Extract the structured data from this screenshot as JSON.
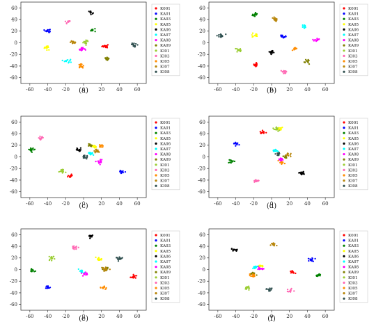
{
  "figure": {
    "legend_labels": [
      "K001",
      "KA01",
      "KA03",
      "KA05",
      "KA06",
      "KA07",
      "KA08",
      "KA09",
      "KI01",
      "KI03",
      "KI05",
      "KI07",
      "KI08"
    ],
    "class_colors": [
      "#ff0000",
      "#0000ff",
      "#008000",
      "#ffff00",
      "#000000",
      "#00ffff",
      "#ff00ff",
      "#808000",
      "#9acd32",
      "#ff69b4",
      "#ff8c00",
      "#b8860b",
      "#2f4f4f"
    ]
  },
  "chart_data": [
    {
      "type": "scatter",
      "caption": "(a)",
      "xlim": [
        -70,
        70
      ],
      "ylim": [
        -70,
        70
      ],
      "xticks": [
        -60,
        -40,
        -20,
        0,
        20,
        40,
        60
      ],
      "yticks": [
        60,
        40,
        20,
        0,
        -20,
        -40,
        -60
      ],
      "xlabel": "",
      "ylabel": "",
      "grid": false,
      "legend": "right",
      "series": [
        {
          "name": "K001",
          "center": [
            24,
            -6
          ]
        },
        {
          "name": "KA01",
          "center": [
            -40,
            21
          ]
        },
        {
          "name": "KA03",
          "center": [
            10,
            22
          ]
        },
        {
          "name": "KA05",
          "center": [
            -41,
            -8
          ]
        },
        {
          "name": "KA06",
          "center": [
            8,
            52
          ]
        },
        {
          "name": "KA07",
          "center": [
            -18,
            -31
          ]
        },
        {
          "name": "KA08",
          "center": [
            -2,
            -11
          ]
        },
        {
          "name": "KA09",
          "center": [
            26,
            -27
          ]
        },
        {
          "name": "KI01",
          "center": [
            2,
            1
          ]
        },
        {
          "name": "KI03",
          "center": [
            -17,
            36
          ]
        },
        {
          "name": "KI05",
          "center": [
            -3,
            -40
          ]
        },
        {
          "name": "KI07",
          "center": [
            -12,
            1
          ]
        },
        {
          "name": "KI08",
          "center": [
            57,
            -3
          ]
        }
      ]
    },
    {
      "type": "scatter",
      "caption": "(b)",
      "xlim": [
        -70,
        70
      ],
      "ylim": [
        -70,
        70
      ],
      "xticks": [
        -60,
        -40,
        -20,
        0,
        20,
        40,
        60
      ],
      "yticks": [
        60,
        40,
        20,
        0,
        -20,
        -40,
        -60
      ],
      "xlabel": "",
      "ylabel": "",
      "grid": false,
      "legend": "right",
      "series": [
        {
          "name": "K001",
          "center": [
            -18,
            -38
          ]
        },
        {
          "name": "KA01",
          "center": [
            13,
            11
          ]
        },
        {
          "name": "KA03",
          "center": [
            -18,
            49
          ]
        },
        {
          "name": "KA05",
          "center": [
            -18,
            13
          ]
        },
        {
          "name": "KA06",
          "center": [
            0,
            -16
          ]
        },
        {
          "name": "KA07",
          "center": [
            36,
            27
          ]
        },
        {
          "name": "KA08",
          "center": [
            50,
            5
          ]
        },
        {
          "name": "KA09",
          "center": [
            40,
            -31
          ]
        },
        {
          "name": "KI01",
          "center": [
            -36,
            -13
          ]
        },
        {
          "name": "KI03",
          "center": [
            14,
            -50
          ]
        },
        {
          "name": "KI05",
          "center": [
            26,
            -10
          ]
        },
        {
          "name": "KI07",
          "center": [
            4,
            41
          ]
        },
        {
          "name": "KI08",
          "center": [
            -56,
            12
          ]
        }
      ]
    },
    {
      "type": "scatter",
      "caption": "(c)",
      "xlim": [
        -70,
        70
      ],
      "ylim": [
        -70,
        70
      ],
      "xticks": [
        -60,
        -40,
        -20,
        0,
        20,
        40,
        60
      ],
      "yticks": [
        60,
        40,
        20,
        0,
        -20,
        -40,
        -60
      ],
      "xlabel": "",
      "ylabel": "",
      "grid": false,
      "legend": "right",
      "series": [
        {
          "name": "K001",
          "center": [
            -15,
            -33
          ]
        },
        {
          "name": "KA01",
          "center": [
            43,
            -25
          ]
        },
        {
          "name": "KA03",
          "center": [
            -58,
            12
          ]
        },
        {
          "name": "KA05",
          "center": [
            12,
            18
          ]
        },
        {
          "name": "KA06",
          "center": [
            -5,
            12
          ]
        },
        {
          "name": "KA07",
          "center": [
            8,
            5
          ]
        },
        {
          "name": "KA08",
          "center": [
            18,
            -8
          ]
        },
        {
          "name": "KA09",
          "center": [
            8,
            20
          ]
        },
        {
          "name": "KI01",
          "center": [
            -24,
            -25
          ]
        },
        {
          "name": "KI03",
          "center": [
            -48,
            33
          ]
        },
        {
          "name": "KI05",
          "center": [
            20,
            18
          ]
        },
        {
          "name": "KI07",
          "center": [
            15,
            10
          ]
        },
        {
          "name": "KI08",
          "center": [
            2,
            0
          ]
        }
      ]
    },
    {
      "type": "scatter",
      "caption": "(d)",
      "xlim": [
        -70,
        70
      ],
      "ylim": [
        -70,
        70
      ],
      "xticks": [
        -60,
        -40,
        -20,
        0,
        20,
        40,
        60
      ],
      "yticks": [
        60,
        40,
        20,
        0,
        -20,
        -40,
        -60
      ],
      "xlabel": "",
      "ylabel": "",
      "grid": false,
      "legend": "right",
      "series": [
        {
          "name": "K001",
          "center": [
            -10,
            42
          ]
        },
        {
          "name": "KA01",
          "center": [
            -40,
            23
          ]
        },
        {
          "name": "KA03",
          "center": [
            -45,
            -8
          ]
        },
        {
          "name": "KA05",
          "center": [
            10,
            48
          ]
        },
        {
          "name": "KA06",
          "center": [
            34,
            -28
          ]
        },
        {
          "name": "KA07",
          "center": [
            5,
            10
          ]
        },
        {
          "name": "KA08",
          "center": [
            10,
            -5
          ]
        },
        {
          "name": "KA09",
          "center": [
            15,
            0
          ]
        },
        {
          "name": "KI01",
          "center": [
            5,
            48
          ]
        },
        {
          "name": "KI03",
          "center": [
            -17,
            -41
          ]
        },
        {
          "name": "KI05",
          "center": [
            12,
            -10
          ]
        },
        {
          "name": "KI07",
          "center": [
            18,
            4
          ]
        },
        {
          "name": "KI08",
          "center": [
            8,
            5
          ]
        }
      ]
    },
    {
      "type": "scatter",
      "caption": "(e)",
      "xlim": [
        -70,
        70
      ],
      "ylim": [
        -70,
        70
      ],
      "xticks": [
        -60,
        -40,
        -20,
        0,
        20,
        40,
        60
      ],
      "yticks": [
        60,
        40,
        20,
        0,
        -20,
        -40,
        -60
      ],
      "xlabel": "",
      "ylabel": "",
      "grid": false,
      "legend": "right",
      "series": [
        {
          "name": "K001",
          "center": [
            56,
            -12
          ]
        },
        {
          "name": "KA01",
          "center": [
            -40,
            -30
          ]
        },
        {
          "name": "KA03",
          "center": [
            -57,
            -2
          ]
        },
        {
          "name": "KA05",
          "center": [
            17,
            18
          ]
        },
        {
          "name": "KA06",
          "center": [
            8,
            57
          ]
        },
        {
          "name": "KA07",
          "center": [
            -2,
            -3
          ]
        },
        {
          "name": "KA08",
          "center": [
            2,
            -8
          ]
        },
        {
          "name": "KA09",
          "center": [
            24,
            1
          ]
        },
        {
          "name": "KI01",
          "center": [
            -36,
            20
          ]
        },
        {
          "name": "KI03",
          "center": [
            -10,
            38
          ]
        },
        {
          "name": "KI05",
          "center": [
            22,
            -31
          ]
        },
        {
          "name": "KI07",
          "center": [
            24,
            1
          ]
        },
        {
          "name": "KI08",
          "center": [
            40,
            19
          ]
        }
      ]
    },
    {
      "type": "scatter",
      "caption": "(f)",
      "xlim": [
        -70,
        70
      ],
      "ylim": [
        -70,
        70
      ],
      "xticks": [
        -60,
        -40,
        -20,
        0,
        20,
        40,
        60
      ],
      "yticks": [
        60,
        40,
        20,
        0,
        -20,
        -40,
        -60
      ],
      "xlabel": "",
      "ylabel": "",
      "grid": false,
      "legend": "right",
      "series": [
        {
          "name": "K001",
          "center": [
            23,
            -4
          ]
        },
        {
          "name": "KA01",
          "center": [
            45,
            17
          ]
        },
        {
          "name": "KA03",
          "center": [
            52,
            -10
          ]
        },
        {
          "name": "KA05",
          "center": [
            -12,
            5
          ]
        },
        {
          "name": "KA06",
          "center": [
            -41,
            34
          ]
        },
        {
          "name": "KA07",
          "center": [
            -18,
            5
          ]
        },
        {
          "name": "KA08",
          "center": [
            -12,
            2
          ]
        },
        {
          "name": "KA09",
          "center": [
            -20,
            -8
          ]
        },
        {
          "name": "KI01",
          "center": [
            -27,
            -32
          ]
        },
        {
          "name": "KI03",
          "center": [
            20,
            -36
          ]
        },
        {
          "name": "KI05",
          "center": [
            -22,
            -10
          ]
        },
        {
          "name": "KI07",
          "center": [
            2,
            43
          ]
        },
        {
          "name": "KI08",
          "center": [
            -3,
            -35
          ]
        }
      ]
    }
  ]
}
